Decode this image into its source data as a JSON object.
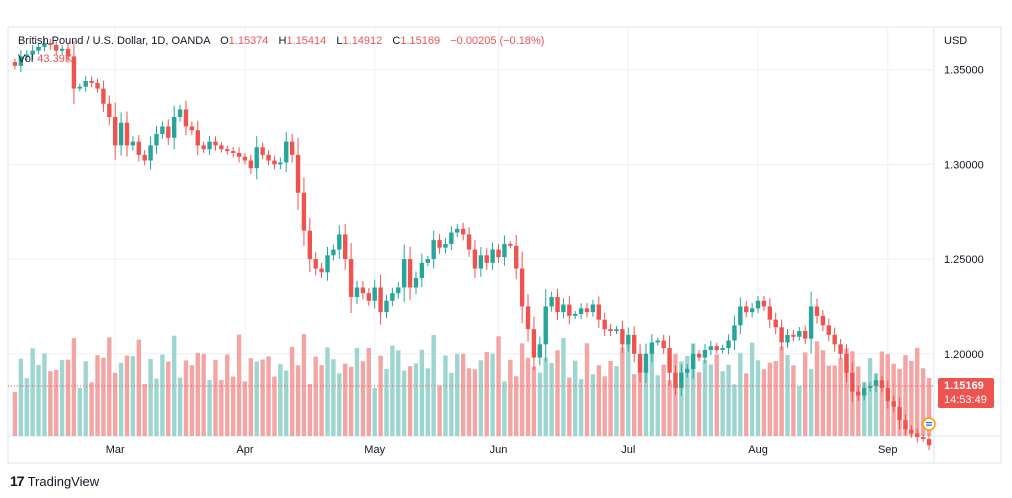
{
  "legend": {
    "symbol": "British Pound / U.S. Dollar, 1D, OANDA",
    "o_label": "O",
    "o_value": "1.15374",
    "h_label": "H",
    "h_value": "1.15414",
    "l_label": "L",
    "l_value": "1.14912",
    "c_label": "C",
    "c_value": "1.15169",
    "change": "−0.00205 (−0.18%)"
  },
  "volume": {
    "label": "Vol",
    "value": "43.39K"
  },
  "currency": "USD",
  "last_price": {
    "price": "1.15169",
    "countdown": "14:53:49"
  },
  "branding": {
    "logo_text": "TradingView",
    "logo_mark": "17"
  },
  "colors": {
    "up": "#26a69a",
    "down": "#ef5350",
    "up_vol": "#9dd6d0",
    "down_vol": "#f3a5a4",
    "grid": "#eef0f3",
    "text": "#131722"
  },
  "chart_data": {
    "type": "candlestick",
    "y_range": [
      1.1566,
      1.3725
    ],
    "y_ticks": [
      "1.35000",
      "1.30000",
      "1.25000",
      "1.20000"
    ],
    "x_tick_labels": [
      "Mar",
      "Apr",
      "May",
      "Jun",
      "Jul",
      "Aug",
      "Sep"
    ],
    "x_tick_positions": [
      17,
      39,
      61,
      82,
      104,
      126,
      148
    ],
    "grid": true,
    "closes": [
      1.352,
      1.357,
      1.358,
      1.36,
      1.362,
      1.364,
      1.363,
      1.36,
      1.361,
      1.357,
      1.34,
      1.341,
      1.344,
      1.343,
      1.34,
      1.332,
      1.325,
      1.31,
      1.322,
      1.31,
      1.312,
      1.305,
      1.302,
      1.31,
      1.316,
      1.32,
      1.314,
      1.325,
      1.329,
      1.32,
      1.318,
      1.31,
      1.308,
      1.312,
      1.31,
      1.308,
      1.307,
      1.306,
      1.304,
      1.302,
      1.298,
      1.309,
      1.305,
      1.302,
      1.3,
      1.301,
      1.312,
      1.305,
      1.285,
      1.265,
      1.25,
      1.245,
      1.243,
      1.252,
      1.255,
      1.263,
      1.25,
      1.23,
      1.235,
      1.232,
      1.228,
      1.235,
      1.222,
      1.228,
      1.232,
      1.235,
      1.25,
      1.235,
      1.24,
      1.248,
      1.25,
      1.26,
      1.256,
      1.258,
      1.264,
      1.266,
      1.263,
      1.255,
      1.245,
      1.252,
      1.248,
      1.255,
      1.251,
      1.258,
      1.257,
      1.245,
      1.225,
      1.213,
      1.198,
      1.205,
      1.225,
      1.23,
      1.222,
      1.226,
      1.22,
      1.221,
      1.224,
      1.222,
      1.226,
      1.218,
      1.213,
      1.212,
      1.213,
      1.205,
      1.21,
      1.2,
      1.19,
      1.2,
      1.206,
      1.207,
      1.203,
      1.19,
      1.182,
      1.19,
      1.192,
      1.2,
      1.198,
      1.202,
      1.204,
      1.202,
      1.203,
      1.207,
      1.215,
      1.225,
      1.222,
      1.224,
      1.228,
      1.225,
      1.218,
      1.214,
      1.206,
      1.21,
      1.209,
      1.212,
      1.208,
      1.225,
      1.22,
      1.215,
      1.21,
      1.205,
      1.2,
      1.19,
      1.18,
      1.178,
      1.182,
      1.183,
      1.186,
      1.182,
      1.175,
      1.172,
      1.165,
      1.16,
      1.158,
      1.156,
      1.155,
      1.15169
    ],
    "volume_range": [
      0,
      60000
    ],
    "volume_label": "Vol"
  }
}
